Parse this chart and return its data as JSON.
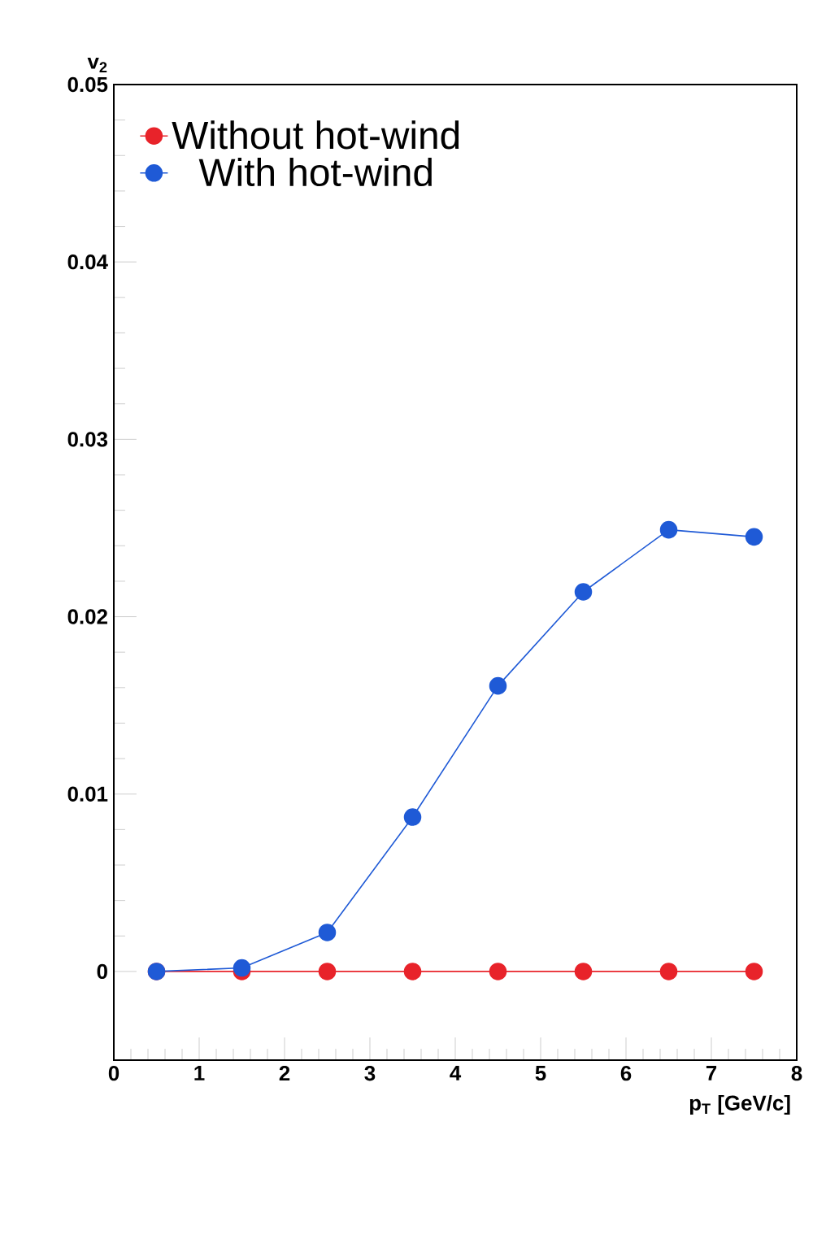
{
  "chart_data": {
    "type": "line",
    "xlabel": "p$_{T}$ [GeV/c]",
    "ylabel": "v$_{2}$",
    "x": [
      0.5,
      1.5,
      2.5,
      3.5,
      4.5,
      5.5,
      6.5,
      7.5
    ],
    "series": [
      {
        "name": "Without hot-wind",
        "color": "#e8232a",
        "values": [
          0,
          0,
          0,
          0,
          0,
          0,
          0,
          0
        ]
      },
      {
        "name": "With hot-wind",
        "color": "#1f5ad6",
        "values": [
          0,
          0.0002,
          0.0022,
          0.0087,
          0.0161,
          0.0214,
          0.0249,
          0.0245
        ]
      }
    ],
    "xlim": [
      0,
      8
    ],
    "ylim": [
      -0.005,
      0.05
    ],
    "xticks": [
      0,
      1,
      2,
      3,
      4,
      5,
      6,
      7,
      8
    ],
    "yticks": [
      0,
      0.01,
      0.02,
      0.03,
      0.04,
      0.05
    ],
    "legend": "top left",
    "marker": "circle",
    "line_style": "solid"
  }
}
